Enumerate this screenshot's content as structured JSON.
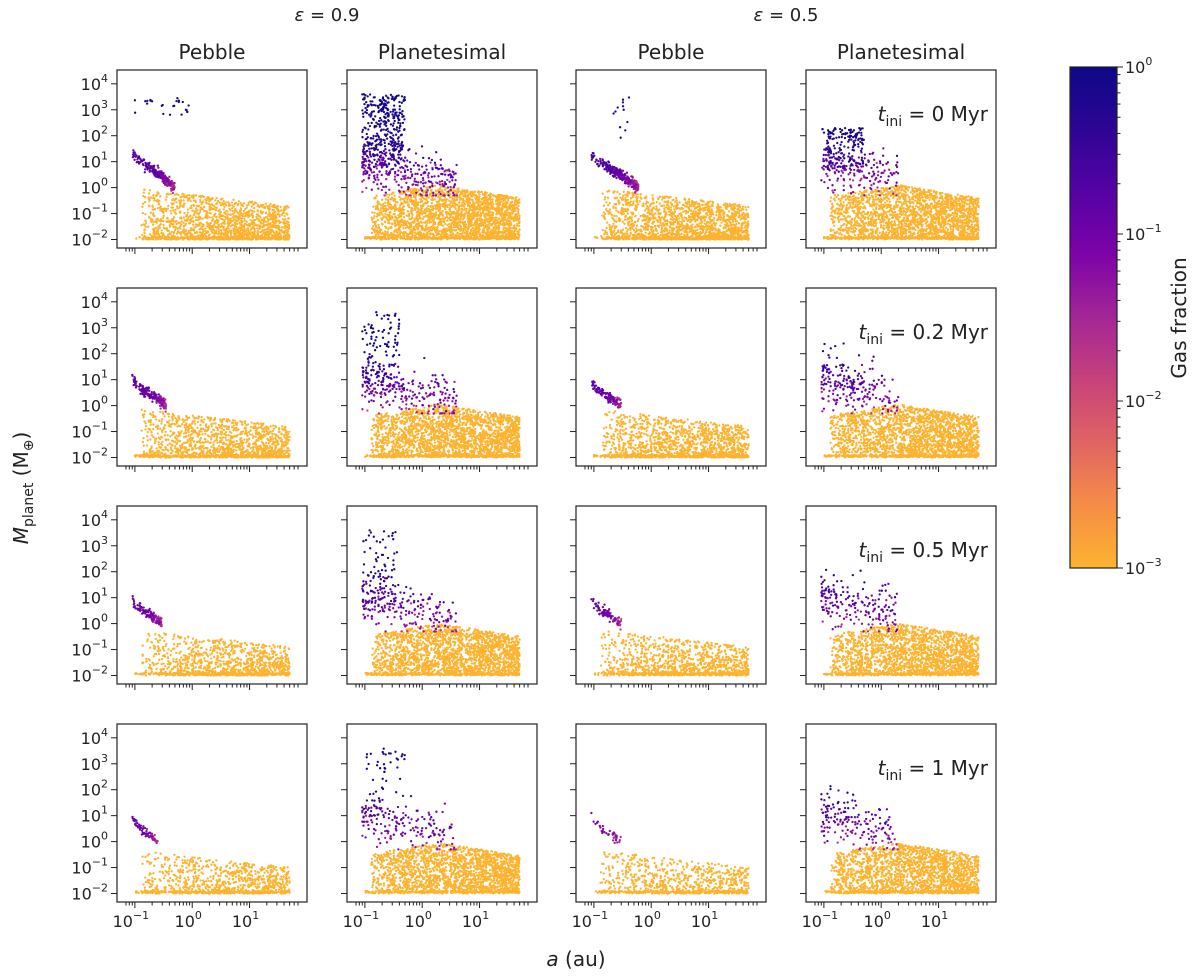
{
  "chart_data": {
    "type": "scatter",
    "figure": "Planet population synthesis grid: planet mass vs semi-major axis, coloured by gas fraction",
    "group_headers": [
      {
        "label": "ε = 0.9",
        "columns": [
          0,
          1
        ]
      },
      {
        "label": "ε = 0.5",
        "columns": [
          2,
          3
        ]
      }
    ],
    "column_titles": [
      "Pebble",
      "Planetesimal",
      "Pebble",
      "Planetesimal"
    ],
    "row_labels": [
      "t_ini = 0 Myr",
      "t_ini = 0.2 Myr",
      "t_ini = 0.5 Myr",
      "t_ini = 1 Myr"
    ],
    "row_label_parts": [
      {
        "base": "t",
        "sub": "ini",
        "rest": " = 0 Myr"
      },
      {
        "base": "t",
        "sub": "ini",
        "rest": " = 0.2 Myr"
      },
      {
        "base": "t",
        "sub": "ini",
        "rest": " = 0.5 Myr"
      },
      {
        "base": "t",
        "sub": "ini",
        "rest": " = 1 Myr"
      }
    ],
    "xlabel": "a (au)",
    "xlabel_parts": {
      "italic": "a",
      "rest": " (au)"
    },
    "ylabel": "M_planet (M⊕)",
    "ylabel_parts": {
      "italic": "M",
      "sub": "planet",
      "rest": " (M",
      "rest_sub": "⊕",
      "close": ")"
    },
    "xscale": "log",
    "yscale": "log",
    "xlim": [
      0.07,
      70
    ],
    "ylim": [
      0.008,
      20000
    ],
    "xticks": [
      {
        "value": 0.1,
        "base": "10",
        "exp": "−1"
      },
      {
        "value": 1,
        "base": "10",
        "exp": "0"
      },
      {
        "value": 10,
        "base": "10",
        "exp": "1"
      }
    ],
    "yticks": [
      {
        "value": 0.01,
        "base": "10",
        "exp": "−2"
      },
      {
        "value": 0.1,
        "base": "10",
        "exp": "−1"
      },
      {
        "value": 1,
        "base": "10",
        "exp": "0"
      },
      {
        "value": 10,
        "base": "10",
        "exp": "1"
      },
      {
        "value": 100,
        "base": "10",
        "exp": "2"
      },
      {
        "value": 1000,
        "base": "10",
        "exp": "3"
      },
      {
        "value": 10000,
        "base": "10",
        "exp": "4"
      }
    ],
    "colorbar": {
      "label": "Gas fraction",
      "scale": "log",
      "range": [
        0.001,
        1
      ],
      "colormap": "plasma (truncated)",
      "stops": [
        "#fdb32f",
        "#f58d47",
        "#e06463",
        "#c6427c",
        "#a32696",
        "#7d03a8",
        "#5602a4",
        "#2d0594",
        "#0d0887"
      ],
      "ticks": [
        {
          "value": 1,
          "base": "10",
          "exp": "0"
        },
        {
          "value": 0.1,
          "base": "10",
          "exp": "−1"
        },
        {
          "value": 0.01,
          "base": "10",
          "exp": "−2"
        },
        {
          "value": 0.001,
          "base": "10",
          "exp": "−3"
        }
      ]
    },
    "panels_description": "Approximate population features read from each panel (a in au, M in Earth masses, gas fraction)",
    "panels": [
      {
        "row": 0,
        "col": 0,
        "type": "pebble",
        "giants": {
          "n": 25,
          "a": [
            0.1,
            0.9
          ],
          "M": [
            600,
            3000
          ]
        },
        "chain": {
          "M_top": 30,
          "a_end": 0.5,
          "count": 250
        },
        "bulk": {
          "count": 1500,
          "a_max": 50
        },
        "chain_gas_fraction_max": 0.15
      },
      {
        "row": 0,
        "col": 1,
        "type": "planetesimal",
        "giants": {
          "n": 320,
          "a": [
            0.09,
            0.5
          ],
          "M": [
            5,
            4000
          ]
        },
        "tail": {
          "a_max": 4,
          "count": 330
        },
        "bulk": {
          "count": 2300,
          "a_max": 50
        }
      },
      {
        "row": 0,
        "col": 2,
        "type": "pebble",
        "giants": {
          "n": 12,
          "a": [
            0.22,
            0.45
          ],
          "M": [
            60,
            3000
          ]
        },
        "chain": {
          "M_top": 20,
          "a_end": 0.6,
          "count": 300
        },
        "bulk": {
          "count": 1700,
          "a_max": 50
        },
        "chain_gas_fraction_max": 0.2
      },
      {
        "row": 0,
        "col": 3,
        "type": "planetesimal",
        "giants": {
          "n": 140,
          "a": [
            0.09,
            0.5
          ],
          "M": [
            5,
            200
          ]
        },
        "tail": {
          "a_max": 2,
          "count": 200
        },
        "bulk": {
          "count": 2100,
          "a_max": 50
        }
      },
      {
        "row": 1,
        "col": 0,
        "type": "pebble",
        "giants": {
          "n": 0
        },
        "chain": {
          "M_top": 12,
          "a_end": 0.35,
          "count": 210
        },
        "bulk": {
          "count": 1300,
          "a_max": 50
        },
        "chain_gas_fraction_max": 0.1
      },
      {
        "row": 1,
        "col": 1,
        "type": "planetesimal",
        "giants": {
          "n": 85,
          "a": [
            0.09,
            0.4
          ],
          "M": [
            5,
            4000
          ]
        },
        "tail": {
          "a_max": 4,
          "count": 270
        },
        "bulk": {
          "count": 2100,
          "a_max": 50
        }
      },
      {
        "row": 1,
        "col": 2,
        "type": "pebble",
        "giants": {
          "n": 0
        },
        "chain": {
          "M_top": 9,
          "a_end": 0.3,
          "count": 150
        },
        "bulk": {
          "count": 1300,
          "a_max": 50
        },
        "chain_gas_fraction_max": 0.1
      },
      {
        "row": 1,
        "col": 3,
        "type": "planetesimal",
        "giants": {
          "n": 5,
          "a": [
            0.1,
            0.3
          ],
          "M": [
            30,
            300
          ]
        },
        "tail": {
          "a_max": 2,
          "count": 210
        },
        "bulk": {
          "count": 2000,
          "a_max": 50
        }
      },
      {
        "row": 2,
        "col": 0,
        "type": "pebble",
        "giants": {
          "n": 0
        },
        "chain": {
          "M_top": 10,
          "a_end": 0.3,
          "count": 120
        },
        "bulk": {
          "count": 1000,
          "a_max": 50
        },
        "chain_gas_fraction_max": 0.08
      },
      {
        "row": 2,
        "col": 1,
        "type": "planetesimal",
        "giants": {
          "n": 60,
          "a": [
            0.09,
            0.4
          ],
          "M": [
            5,
            4000
          ]
        },
        "tail": {
          "a_max": 4,
          "count": 230
        },
        "bulk": {
          "count": 2000,
          "a_max": 50
        }
      },
      {
        "row": 2,
        "col": 2,
        "type": "pebble",
        "giants": {
          "n": 0
        },
        "chain": {
          "M_top": 10,
          "a_end": 0.3,
          "count": 90
        },
        "bulk": {
          "count": 1000,
          "a_max": 50
        },
        "chain_gas_fraction_max": 0.08
      },
      {
        "row": 2,
        "col": 3,
        "type": "planetesimal",
        "giants": {
          "n": 4,
          "a": [
            0.1,
            0.6
          ],
          "M": [
            20,
            200
          ]
        },
        "tail": {
          "a_max": 2,
          "count": 190
        },
        "bulk": {
          "count": 1900,
          "a_max": 50
        }
      },
      {
        "row": 3,
        "col": 0,
        "type": "pebble",
        "giants": {
          "n": 0
        },
        "chain": {
          "M_top": 10,
          "a_end": 0.25,
          "count": 70
        },
        "bulk": {
          "count": 800,
          "a_max": 50
        },
        "chain_gas_fraction_max": 0.08
      },
      {
        "row": 3,
        "col": 1,
        "type": "planetesimal",
        "giants": {
          "n": 40,
          "a": [
            0.1,
            0.5
          ],
          "M": [
            20,
            4000
          ]
        },
        "tail": {
          "a_max": 4,
          "count": 180
        },
        "bulk": {
          "count": 1900,
          "a_max": 50
        }
      },
      {
        "row": 3,
        "col": 2,
        "type": "pebble",
        "giants": {
          "n": 0
        },
        "chain": {
          "M_top": 10,
          "a_end": 0.3,
          "count": 40
        },
        "bulk": {
          "count": 700,
          "a_max": 50
        },
        "chain_gas_fraction_max": 0.06
      },
      {
        "row": 3,
        "col": 3,
        "type": "planetesimal",
        "giants": {
          "n": 4,
          "a": [
            0.1,
            0.4
          ],
          "M": [
            30,
            200
          ]
        },
        "tail": {
          "a_max": 2,
          "count": 170
        },
        "bulk": {
          "count": 1800,
          "a_max": 50
        }
      }
    ]
  }
}
